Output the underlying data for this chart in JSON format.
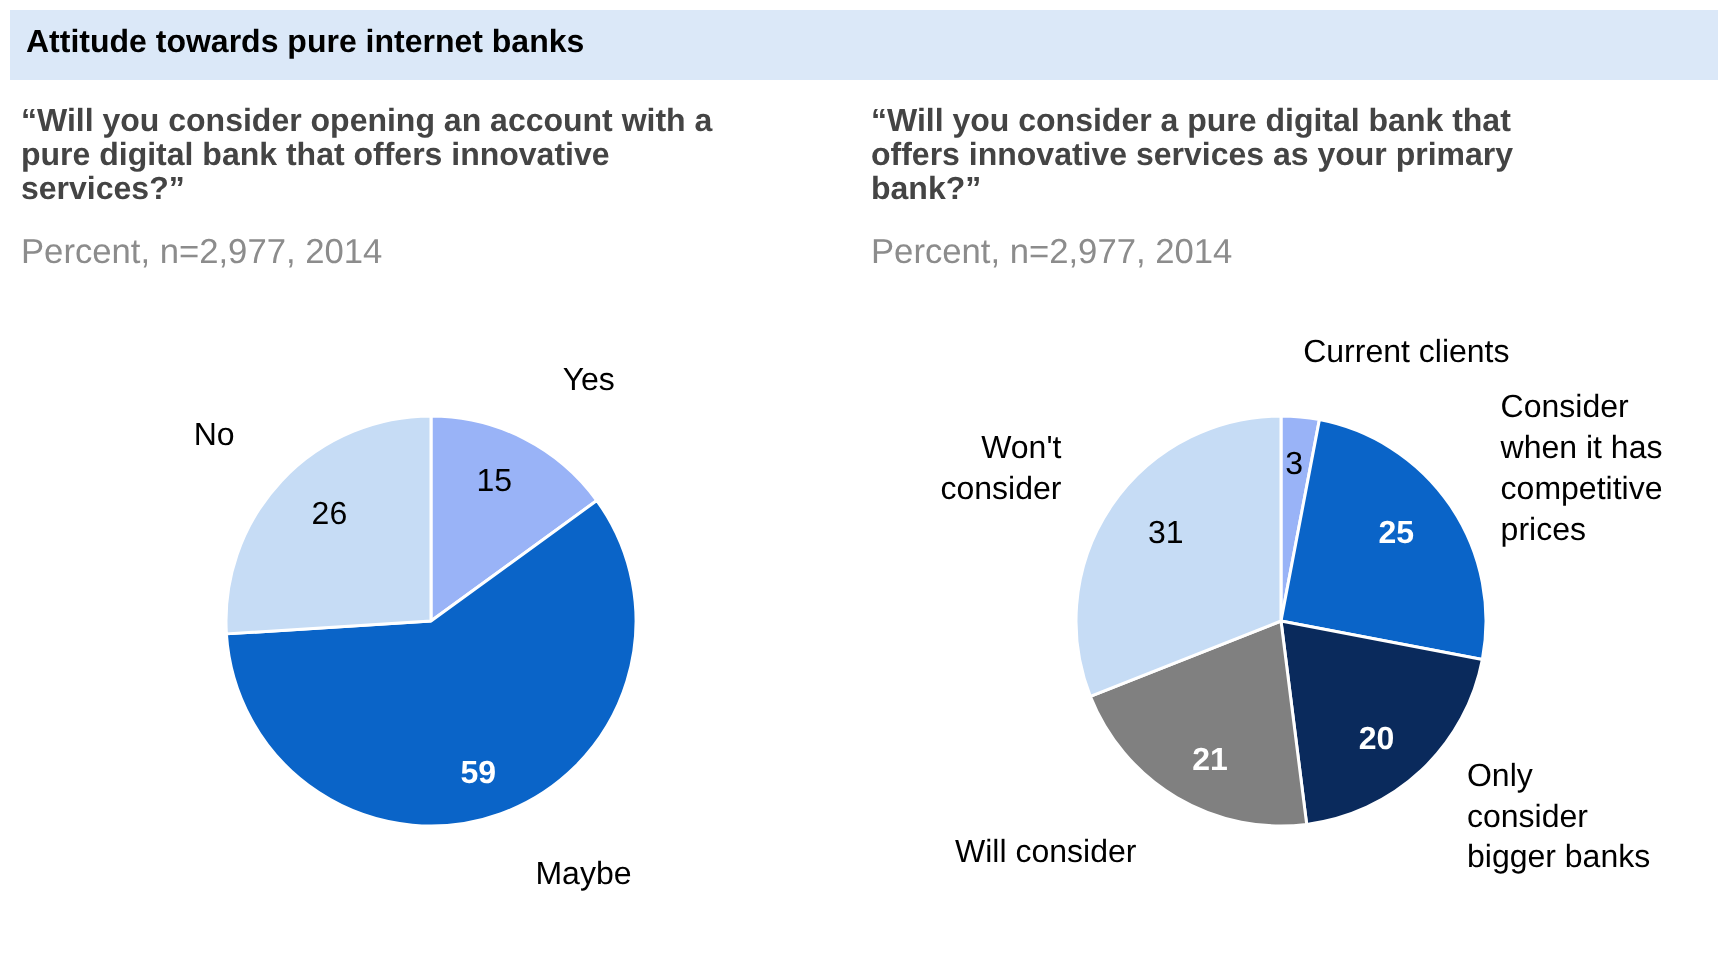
{
  "chart_data": [
    {
      "type": "pie",
      "title": "“Will you consider opening an account with a pure digital bank that offers innovative services?”",
      "subtitle": "Percent, n=2,977, 2014",
      "annotations": [
        "Attitude towards pure internet banks"
      ],
      "categories": [
        "Yes",
        "Maybe",
        "No"
      ],
      "values": [
        15,
        59,
        26
      ],
      "colors": [
        "#99b3f7",
        "#0a64c8",
        "#c6dcf5"
      ],
      "data_labels": true
    },
    {
      "type": "pie",
      "title": "“Will you consider a pure digital bank that offers innovative services as your primary bank?”",
      "subtitle": "Percent, n=2,977, 2014",
      "categories": [
        "Current clients",
        "Consider when it has competitive prices",
        "Only consider bigger banks",
        "Will consider",
        "Won't consider"
      ],
      "values": [
        3,
        25,
        20,
        21,
        31
      ],
      "colors": [
        "#99b3f7",
        "#0a64c8",
        "#0a2a5c",
        "#808080",
        "#c6dcf5"
      ],
      "data_labels": true
    }
  ]
}
